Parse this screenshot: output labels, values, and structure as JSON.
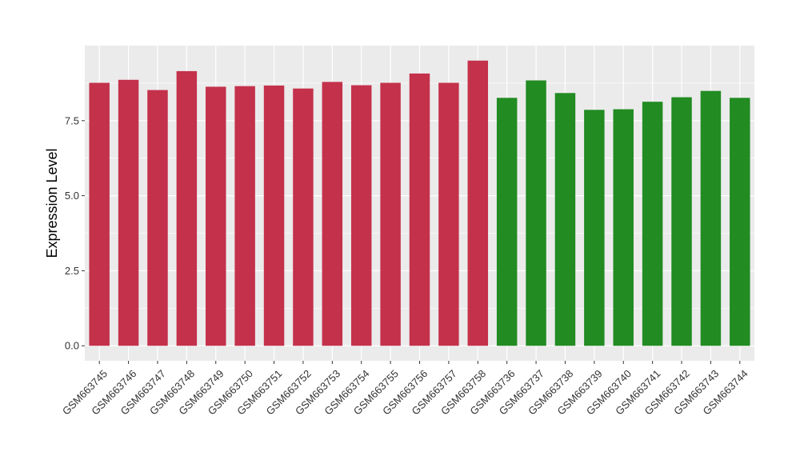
{
  "chart_data": {
    "type": "bar",
    "title": "",
    "xlabel": "",
    "ylabel": "Expression Level",
    "ylim": [
      -0.5,
      10.0
    ],
    "yticks": [
      "0.0",
      "2.5",
      "5.0",
      "7.5"
    ],
    "grid": true,
    "legend": "none",
    "panel_color": "#ebebeb",
    "grid_color": "#ffffff",
    "categories": [
      "GSM663745",
      "GSM663746",
      "GSM663747",
      "GSM663748",
      "GSM663749",
      "GSM663750",
      "GSM663751",
      "GSM663752",
      "GSM663753",
      "GSM663754",
      "GSM663755",
      "GSM663756",
      "GSM663757",
      "GSM663758",
      "GSM663736",
      "GSM663737",
      "GSM663738",
      "GSM663739",
      "GSM663740",
      "GSM663741",
      "GSM663742",
      "GSM663743",
      "GSM663744"
    ],
    "values": [
      8.76,
      8.86,
      8.52,
      9.15,
      8.63,
      8.65,
      8.67,
      8.57,
      8.79,
      8.68,
      8.76,
      9.07,
      8.76,
      9.5,
      8.26,
      8.84,
      8.42,
      7.86,
      7.88,
      8.13,
      8.28,
      8.49,
      8.26
    ],
    "colors": [
      "#c4314b",
      "#c4314b",
      "#c4314b",
      "#c4314b",
      "#c4314b",
      "#c4314b",
      "#c4314b",
      "#c4314b",
      "#c4314b",
      "#c4314b",
      "#c4314b",
      "#c4314b",
      "#c4314b",
      "#c4314b",
      "#228b22",
      "#228b22",
      "#228b22",
      "#228b22",
      "#228b22",
      "#228b22",
      "#228b22",
      "#228b22",
      "#228b22"
    ]
  }
}
